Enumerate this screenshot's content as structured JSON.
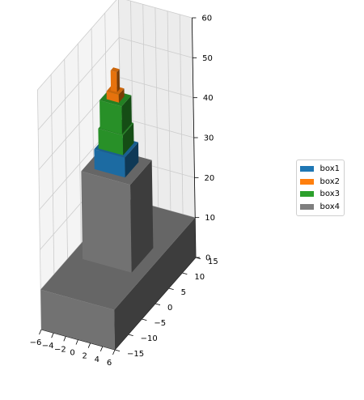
{
  "chart_data": {
    "type": "bar3d",
    "title": "",
    "xlabel": "",
    "ylabel": "",
    "zlabel": "",
    "xlim": [
      -6,
      6
    ],
    "ylim": [
      -15,
      15
    ],
    "zlim": [
      0,
      60
    ],
    "x_ticks": [
      "−6",
      "−4",
      "−2",
      "0",
      "2",
      "4",
      "6"
    ],
    "y_ticks": [
      "−15",
      "−10",
      "−5",
      "0",
      "5",
      "10",
      "15"
    ],
    "z_ticks": [
      "0",
      "10",
      "20",
      "30",
      "40",
      "50",
      "60"
    ],
    "grid": true,
    "legend_position": "right",
    "series": [
      {
        "name": "box1",
        "color": "#1f77b4",
        "boxes": [
          {
            "x": [
              -2.5,
              2.5
            ],
            "y": [
              -2.5,
              2.5
            ],
            "z": [
              32,
              37
            ]
          }
        ]
      },
      {
        "name": "box2",
        "color": "#ff7f0e",
        "boxes": [
          {
            "x": [
              -1,
              1
            ],
            "y": [
              -1,
              1
            ],
            "z": [
              49,
              51
            ]
          },
          {
            "x": [
              -0.5,
              0.5
            ],
            "y": [
              -0.5,
              0.5
            ],
            "z": [
              51,
              56
            ]
          }
        ]
      },
      {
        "name": "box3",
        "color": "#2ca02c",
        "boxes": [
          {
            "x": [
              -2,
              2
            ],
            "y": [
              -2,
              2
            ],
            "z": [
              37,
              42
            ]
          },
          {
            "x": [
              -1.8,
              1.8
            ],
            "y": [
              -1.8,
              1.8
            ],
            "z": [
              42,
              49
            ]
          }
        ]
      },
      {
        "name": "box4",
        "color": "#7f7f7f",
        "boxes": [
          {
            "x": [
              -6,
              6
            ],
            "y": [
              -15,
              15
            ],
            "z": [
              0,
              10
            ]
          },
          {
            "x": [
              -4,
              4
            ],
            "y": [
              -4,
              4
            ],
            "z": [
              10,
              32
            ]
          }
        ]
      }
    ]
  }
}
